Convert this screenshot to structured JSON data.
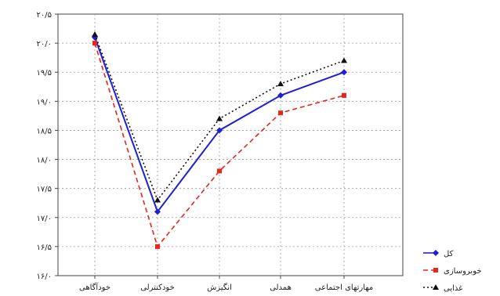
{
  "chart_data": {
    "type": "line",
    "title": "",
    "xlabel": "",
    "ylabel": "",
    "categories": [
      "خودآگاهی",
      "خودکنترلی",
      "انگیزش",
      "همدلی",
      "مهارتهای اجتماعی"
    ],
    "ylim": [
      16.0,
      20.5
    ],
    "yticks": [
      16.0,
      16.5,
      17.0,
      17.5,
      18.0,
      18.5,
      19.0,
      19.5,
      20.0,
      20.5
    ],
    "ytick_labels": [
      "۱۶/۰",
      "۱۶/۵",
      "۱۷/۰",
      "۱۷/۵",
      "۱۸/۰",
      "۱۸/۵",
      "۱۹/۰",
      "۱۹/۵",
      "۲۰/۰",
      "۲۰/۵"
    ],
    "grid": true,
    "legend_position": "right",
    "series": [
      {
        "name": "کل",
        "values": [
          20.1,
          17.1,
          18.5,
          19.1,
          19.5
        ],
        "color": "#1f1fd6",
        "style": "solid",
        "marker": "diamond"
      },
      {
        "name": "خوبروسازی",
        "values": [
          20.0,
          16.5,
          17.8,
          18.8,
          19.1
        ],
        "color": "#e8241c",
        "style": "dashed",
        "marker": "square"
      },
      {
        "name": "غذایی",
        "values": [
          20.15,
          17.3,
          18.7,
          19.3,
          19.7
        ],
        "color": "#111111",
        "style": "dotted",
        "marker": "triangle"
      }
    ]
  }
}
